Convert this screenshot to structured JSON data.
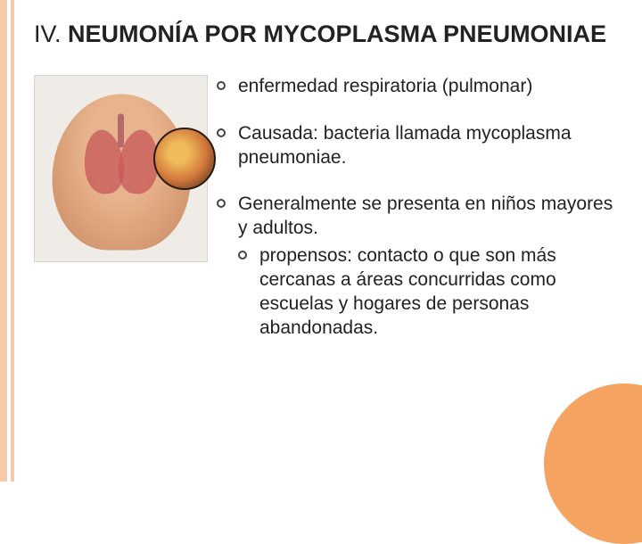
{
  "title": {
    "roman": "IV. ",
    "bold": "NEUMONÍA POR MYCOPLASMA PNEUMONIAE"
  },
  "bullets": [
    {
      "text": "enfermedad respiratoria (pulmonar)"
    },
    {
      "text": "Causada: bacteria llamada mycoplasma pneumoniae."
    },
    {
      "text": "Generalmente se presenta en niños mayores y adultos.",
      "sub": " propensos:  contacto o que son más cercanas a áreas concurridas como escuelas y hogares de personas abandonadas."
    }
  ],
  "colors": {
    "stripe": "#f6c9a8",
    "corner": "#f4a460",
    "text": "#222222",
    "bullet_border": "#444444"
  }
}
